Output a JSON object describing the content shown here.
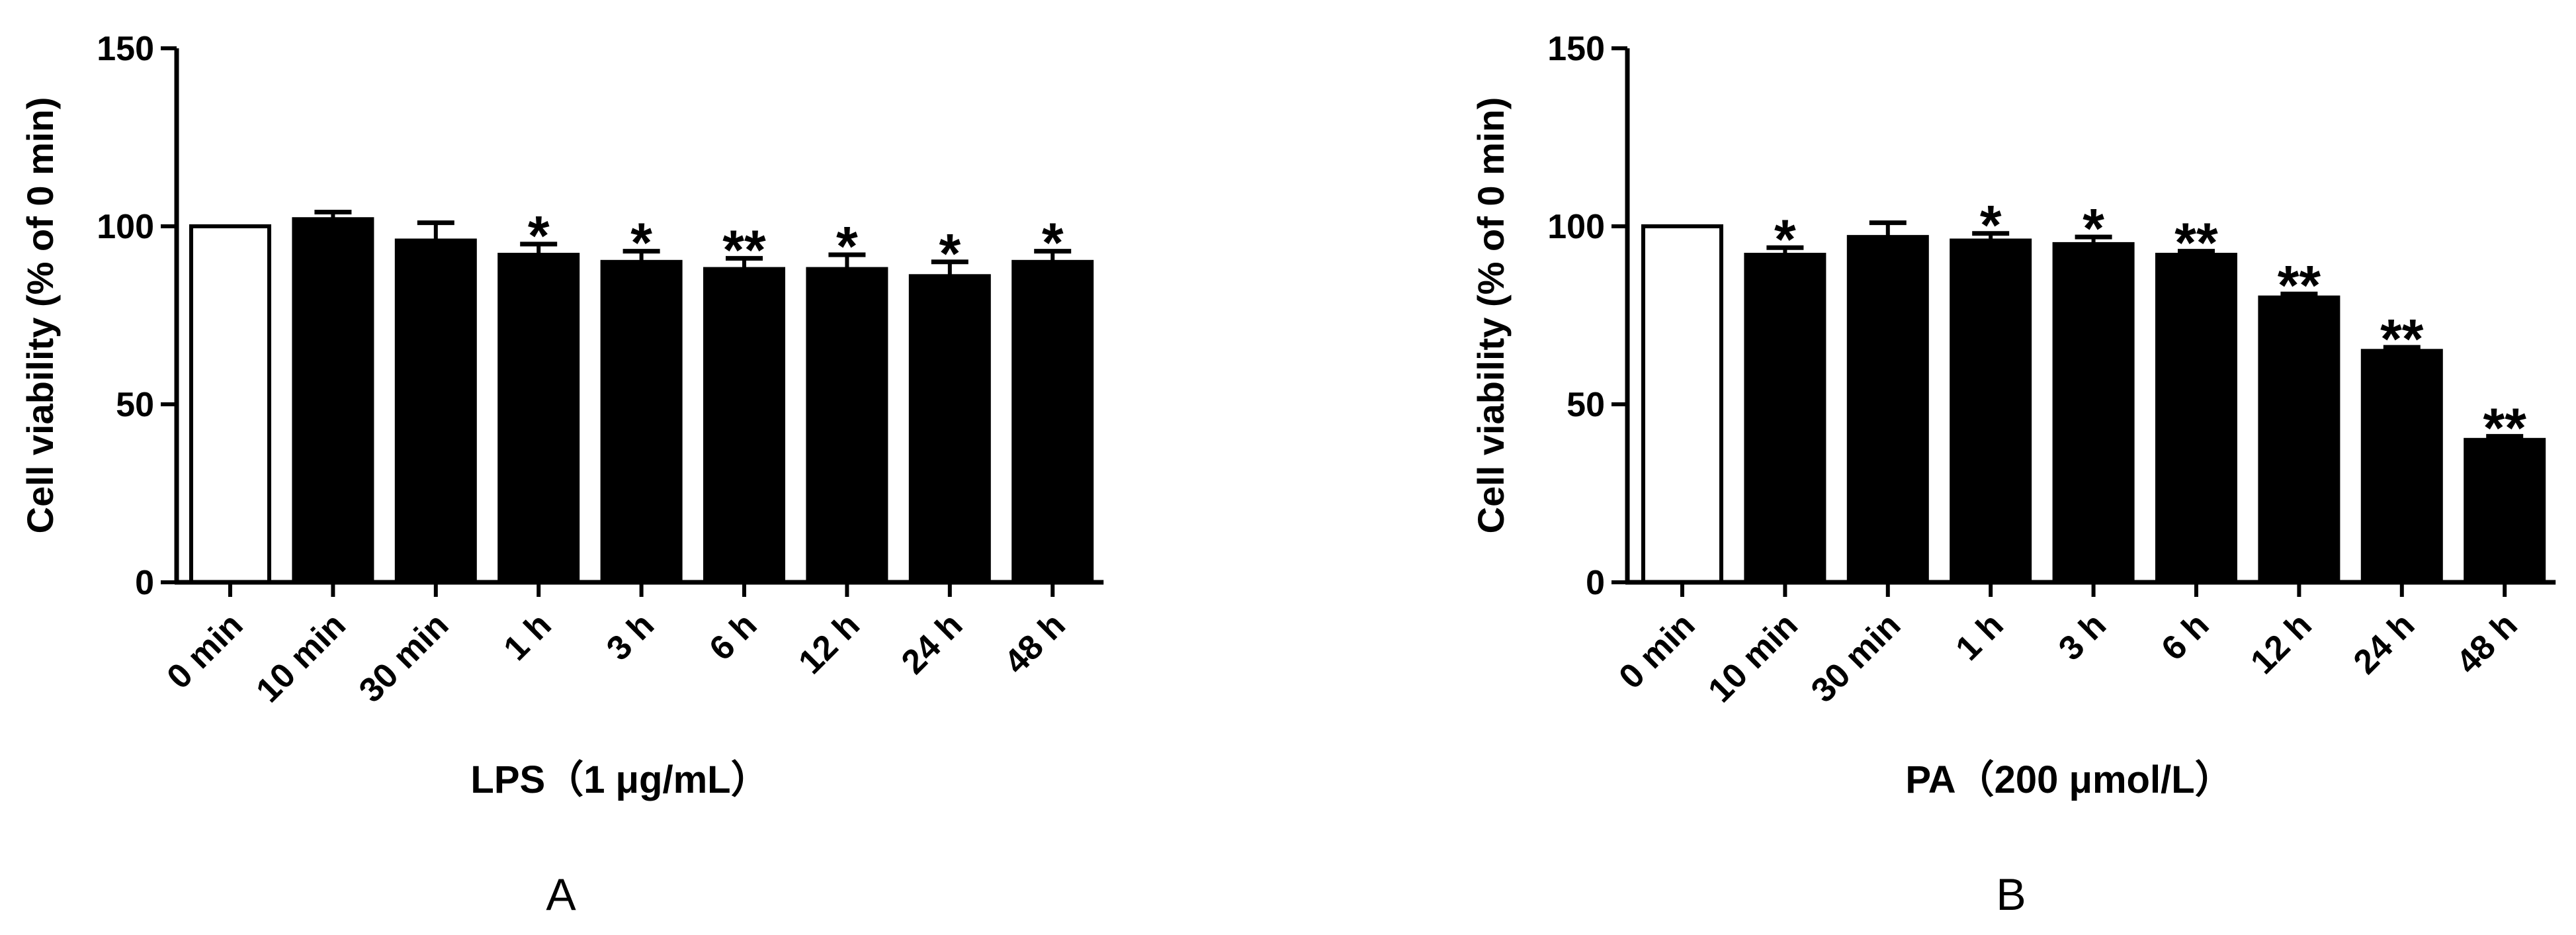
{
  "chart_data": [
    {
      "type": "bar",
      "panel_label": "A",
      "xlabel": "LPS（1 μg/mL）",
      "ylabel": "Cell viability (% of 0 min)",
      "ylim": [
        0,
        150
      ],
      "yticks": [
        0,
        50,
        100,
        150
      ],
      "categories": [
        "0 min",
        "10 min",
        "30 min",
        "1 h",
        "3 h",
        "6 h",
        "12 h",
        "24 h",
        "48 h"
      ],
      "values": [
        100,
        102,
        96,
        92,
        90,
        88,
        88,
        86,
        90
      ],
      "errors": [
        0,
        2,
        5,
        3,
        3,
        3,
        4,
        4,
        3
      ],
      "significance": [
        "",
        "",
        "",
        "*",
        "*",
        "**",
        "*",
        "*",
        "*"
      ],
      "bar_fills": [
        "#ffffff",
        "#000000",
        "#000000",
        "#000000",
        "#000000",
        "#000000",
        "#000000",
        "#000000",
        "#000000"
      ]
    },
    {
      "type": "bar",
      "panel_label": "B",
      "xlabel": "PA（200 μmol/L）",
      "ylabel": "Cell viability (% of 0 min)",
      "ylim": [
        0,
        150
      ],
      "yticks": [
        0,
        50,
        100,
        150
      ],
      "categories": [
        "0 min",
        "10 min",
        "30 min",
        "1 h",
        "3 h",
        "6 h",
        "12 h",
        "24 h",
        "48 h"
      ],
      "values": [
        100,
        92,
        97,
        96,
        95,
        92,
        80,
        65,
        40
      ],
      "errors": [
        0,
        2,
        4,
        2,
        2,
        1,
        1,
        1,
        1
      ],
      "significance": [
        "",
        "*",
        "",
        "*",
        "*",
        "**",
        "**",
        "**",
        "**"
      ],
      "bar_fills": [
        "#ffffff",
        "#000000",
        "#000000",
        "#000000",
        "#000000",
        "#000000",
        "#000000",
        "#000000",
        "#000000"
      ]
    }
  ]
}
